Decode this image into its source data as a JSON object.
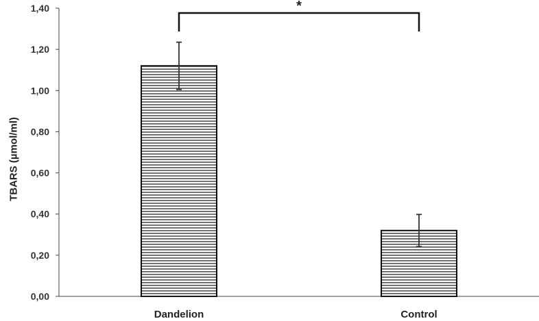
{
  "chart_data": {
    "type": "bar",
    "title": "",
    "xlabel": "",
    "ylabel": "TBARS (µmol/ml)",
    "categories": [
      "Dandelion",
      "Control"
    ],
    "values": [
      1.12,
      0.32
    ],
    "errors": [
      0.115,
      0.078
    ],
    "ylim": [
      0,
      1.4
    ],
    "yticks": [
      0,
      0.2,
      0.4,
      0.6,
      0.8,
      1.0,
      1.2,
      1.4
    ],
    "ytick_labels": [
      "0,00",
      "0,20",
      "0,40",
      "0,60",
      "0,80",
      "1,00",
      "1,20",
      "1,40"
    ],
    "grid": false,
    "bar_fill": "horizontal-hatch",
    "significance": {
      "from": 0,
      "to": 1,
      "label": "*"
    },
    "colors": {
      "bar_stroke": "#111111",
      "hatch": "#222222",
      "axis": "#444444"
    }
  }
}
